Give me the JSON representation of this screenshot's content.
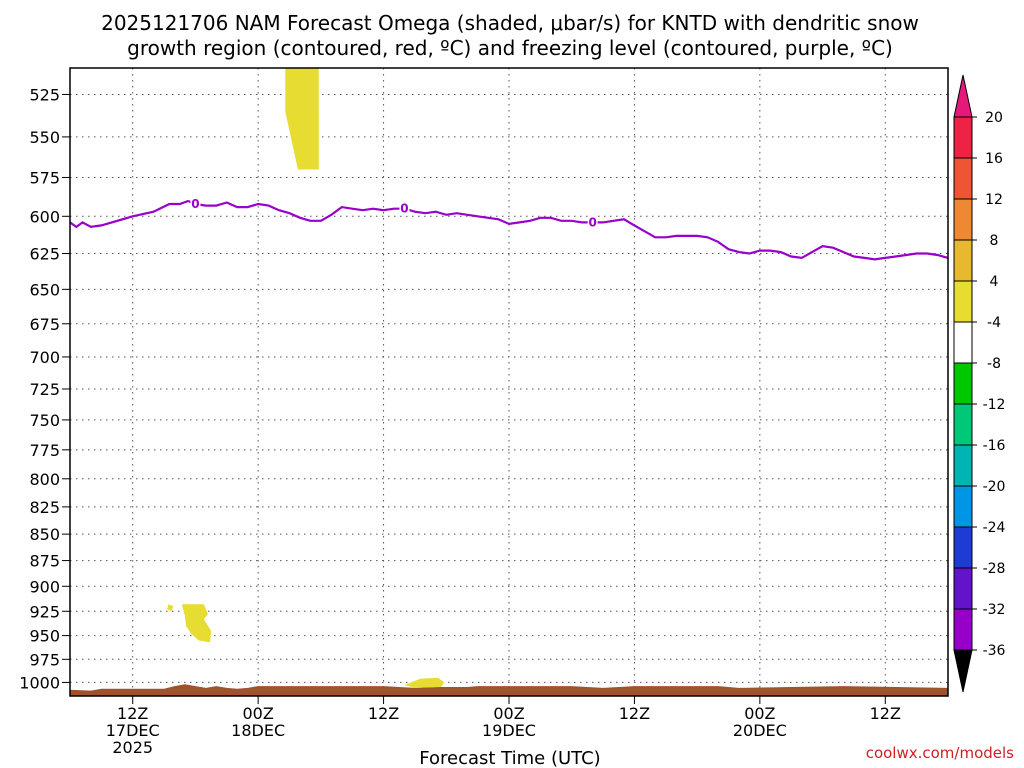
{
  "title": {
    "line1": "2025121706 NAM Forecast Omega (shaded, μbar/s) for KNTD with dendritic snow",
    "line2": "growth region (contoured, red, ºC) and freezing level (contoured, purple, ºC)"
  },
  "credit": "coolwx.com/models",
  "chart_data": {
    "type": "heatmap",
    "title": "2025121706 NAM Forecast Omega (shaded, μbar/s) for KNTD with dendritic snow growth region (contoured, red, ºC) and freezing level (contoured, purple, ºC)",
    "xlabel": "Forecast Time (UTC)",
    "ylabel": "",
    "y_scale": "log",
    "y_inverted": true,
    "ylim": [
      1015,
      510
    ],
    "xlim": [
      "2025-12-17 06Z",
      "2025-12-20 18Z"
    ],
    "y_ticks": [
      525,
      550,
      575,
      600,
      625,
      650,
      675,
      700,
      725,
      750,
      775,
      800,
      825,
      850,
      875,
      900,
      925,
      950,
      975,
      1000
    ],
    "x_ticks": [
      {
        "time": "2025-12-17 12Z",
        "labels": [
          "12Z",
          "17DEC",
          "2025"
        ]
      },
      {
        "time": "2025-12-18 00Z",
        "labels": [
          "00Z",
          "18DEC"
        ]
      },
      {
        "time": "2025-12-18 12Z",
        "labels": [
          "12Z"
        ]
      },
      {
        "time": "2025-12-19 00Z",
        "labels": [
          "00Z",
          "19DEC"
        ]
      },
      {
        "time": "2025-12-19 12Z",
        "labels": [
          "12Z"
        ]
      },
      {
        "time": "2025-12-20 00Z",
        "labels": [
          "00Z",
          "20DEC"
        ]
      },
      {
        "time": "2025-12-20 12Z",
        "labels": [
          "12Z"
        ]
      }
    ],
    "grid": true,
    "freezing_level": {
      "color": "#9900cc",
      "label": "0",
      "label_hours": [
        12,
        32,
        50
      ],
      "points": [
        {
          "h": 0,
          "p": 604
        },
        {
          "h": 0.6,
          "p": 607
        },
        {
          "h": 1.2,
          "p": 604
        },
        {
          "h": 2,
          "p": 607
        },
        {
          "h": 3,
          "p": 606
        },
        {
          "h": 4,
          "p": 604
        },
        {
          "h": 6,
          "p": 600
        },
        {
          "h": 8,
          "p": 597
        },
        {
          "h": 9.5,
          "p": 592
        },
        {
          "h": 10.5,
          "p": 592
        },
        {
          "h": 11.3,
          "p": 590
        },
        {
          "h": 12,
          "p": 592
        },
        {
          "h": 13,
          "p": 593
        },
        {
          "h": 14,
          "p": 593
        },
        {
          "h": 15,
          "p": 591
        },
        {
          "h": 16,
          "p": 594
        },
        {
          "h": 17,
          "p": 594
        },
        {
          "h": 18,
          "p": 592
        },
        {
          "h": 19,
          "p": 593
        },
        {
          "h": 20,
          "p": 596
        },
        {
          "h": 21,
          "p": 598
        },
        {
          "h": 22,
          "p": 601
        },
        {
          "h": 23,
          "p": 603
        },
        {
          "h": 24,
          "p": 603
        },
        {
          "h": 25,
          "p": 599
        },
        {
          "h": 26,
          "p": 594
        },
        {
          "h": 27,
          "p": 595
        },
        {
          "h": 28,
          "p": 596
        },
        {
          "h": 29,
          "p": 595
        },
        {
          "h": 30,
          "p": 596
        },
        {
          "h": 31,
          "p": 595
        },
        {
          "h": 32,
          "p": 595
        },
        {
          "h": 33,
          "p": 597
        },
        {
          "h": 34,
          "p": 598
        },
        {
          "h": 35,
          "p": 597
        },
        {
          "h": 36,
          "p": 599
        },
        {
          "h": 37,
          "p": 598
        },
        {
          "h": 38,
          "p": 599
        },
        {
          "h": 39,
          "p": 600
        },
        {
          "h": 40,
          "p": 601
        },
        {
          "h": 41,
          "p": 602
        },
        {
          "h": 42,
          "p": 605
        },
        {
          "h": 43,
          "p": 604
        },
        {
          "h": 44,
          "p": 603
        },
        {
          "h": 45,
          "p": 601
        },
        {
          "h": 46,
          "p": 601
        },
        {
          "h": 47,
          "p": 603
        },
        {
          "h": 48,
          "p": 603
        },
        {
          "h": 49,
          "p": 604
        },
        {
          "h": 50,
          "p": 604
        },
        {
          "h": 51,
          "p": 604
        },
        {
          "h": 52,
          "p": 603
        },
        {
          "h": 53,
          "p": 602
        },
        {
          "h": 54,
          "p": 606
        },
        {
          "h": 55,
          "p": 610
        },
        {
          "h": 56,
          "p": 614
        },
        {
          "h": 57,
          "p": 614
        },
        {
          "h": 58,
          "p": 613
        },
        {
          "h": 59,
          "p": 613
        },
        {
          "h": 60,
          "p": 613
        },
        {
          "h": 61,
          "p": 614
        },
        {
          "h": 62,
          "p": 617
        },
        {
          "h": 63,
          "p": 622
        },
        {
          "h": 64,
          "p": 624
        },
        {
          "h": 65,
          "p": 625
        },
        {
          "h": 66,
          "p": 623
        },
        {
          "h": 67,
          "p": 623
        },
        {
          "h": 68,
          "p": 624
        },
        {
          "h": 69,
          "p": 627
        },
        {
          "h": 70,
          "p": 628
        },
        {
          "h": 71,
          "p": 624
        },
        {
          "h": 72,
          "p": 620
        },
        {
          "h": 73,
          "p": 621
        },
        {
          "h": 74,
          "p": 624
        },
        {
          "h": 75,
          "p": 627
        },
        {
          "h": 76,
          "p": 628
        },
        {
          "h": 77,
          "p": 629
        },
        {
          "h": 78,
          "p": 628
        },
        {
          "h": 79,
          "p": 627
        },
        {
          "h": 80,
          "p": 626
        },
        {
          "h": 81,
          "p": 625
        },
        {
          "h": 82,
          "p": 625
        },
        {
          "h": 83,
          "p": 626
        },
        {
          "h": 84,
          "p": 628
        }
      ]
    },
    "omega_regions": [
      {
        "range": "4 to 8",
        "color": "#e6dc32",
        "points": [
          {
            "h": 20.6,
            "p": 510
          },
          {
            "h": 23.8,
            "p": 510
          },
          {
            "h": 23.8,
            "p": 570
          },
          {
            "h": 21.8,
            "p": 570
          },
          {
            "h": 20.6,
            "p": 535
          }
        ]
      },
      {
        "range": "4 to 8",
        "color": "#e6dc32",
        "points": [
          {
            "h": 9.4,
            "p": 918
          },
          {
            "h": 9.9,
            "p": 920
          },
          {
            "h": 9.7,
            "p": 925
          },
          {
            "h": 9.3,
            "p": 923
          }
        ]
      },
      {
        "range": "4 to 8",
        "color": "#e6dc32",
        "points": [
          {
            "h": 10.7,
            "p": 918
          },
          {
            "h": 12.8,
            "p": 918
          },
          {
            "h": 13.2,
            "p": 928
          },
          {
            "h": 12.8,
            "p": 933
          },
          {
            "h": 13.5,
            "p": 945
          },
          {
            "h": 13.4,
            "p": 957
          },
          {
            "h": 12.3,
            "p": 955
          },
          {
            "h": 11.6,
            "p": 948
          },
          {
            "h": 11.1,
            "p": 940
          },
          {
            "h": 11.0,
            "p": 930
          }
        ]
      },
      {
        "range": "4 to 8",
        "color": "#e6dc32",
        "points": [
          {
            "h": 32.0,
            "p": 1003
          },
          {
            "h": 33.5,
            "p": 996
          },
          {
            "h": 35.2,
            "p": 995
          },
          {
            "h": 35.8,
            "p": 1000
          },
          {
            "h": 35.5,
            "p": 1005
          },
          {
            "h": 33.0,
            "p": 1006
          }
        ]
      }
    ],
    "terrain": {
      "color": "#a0522d",
      "points": [
        {
          "h": 0,
          "p": 1008
        },
        {
          "h": 2,
          "p": 1009
        },
        {
          "h": 3,
          "p": 1007
        },
        {
          "h": 9,
          "p": 1007
        },
        {
          "h": 10,
          "p": 1004
        },
        {
          "h": 11,
          "p": 1002
        },
        {
          "h": 12,
          "p": 1004
        },
        {
          "h": 13,
          "p": 1006
        },
        {
          "h": 14,
          "p": 1004
        },
        {
          "h": 15,
          "p": 1006
        },
        {
          "h": 16,
          "p": 1007
        },
        {
          "h": 17,
          "p": 1006
        },
        {
          "h": 18,
          "p": 1004
        },
        {
          "h": 30,
          "p": 1004
        },
        {
          "h": 33,
          "p": 1006
        },
        {
          "h": 35,
          "p": 1005
        },
        {
          "h": 38,
          "p": 1005
        },
        {
          "h": 39,
          "p": 1004
        },
        {
          "h": 48,
          "p": 1004
        },
        {
          "h": 51,
          "p": 1006
        },
        {
          "h": 54,
          "p": 1004
        },
        {
          "h": 58,
          "p": 1004
        },
        {
          "h": 60,
          "p": 1004
        },
        {
          "h": 62,
          "p": 1004
        },
        {
          "h": 64,
          "p": 1006
        },
        {
          "h": 74,
          "p": 1004
        },
        {
          "h": 84,
          "p": 1006
        }
      ]
    },
    "colorbar": {
      "labels": [
        "20",
        "16",
        "12",
        "8",
        "4",
        "-4",
        "-8",
        "-12",
        "-16",
        "-20",
        "-24",
        "-28",
        "-32",
        "-36"
      ],
      "colors": [
        "#ee2244",
        "#ee5533",
        "#ee8833",
        "#e8b830",
        "#e6dc32",
        "#ffffff",
        "#00c800",
        "#00c878",
        "#00b4b4",
        "#0096e6",
        "#1e3cd2",
        "#6414c8",
        "#9600c8",
        "#aaaaaa"
      ],
      "top_arrow_color": "#e6197a",
      "bottom_arrow_color": "#000000"
    }
  }
}
